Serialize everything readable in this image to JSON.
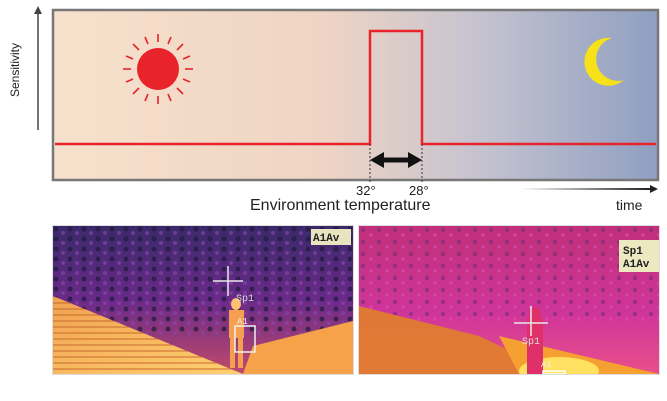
{
  "diagram": {
    "y_axis_label": "Sensitivity",
    "x_axis_label": "Environment temperature",
    "time_label": "time",
    "temp_low_label": "32°",
    "temp_high_label": "28°",
    "icons": [
      "sun-icon",
      "moon-icon",
      "double-arrow-icon"
    ],
    "colors": {
      "signal": "#e8232a",
      "day_gradient_start": "#f5dcc9",
      "night_gradient_end": "#8e9ec0",
      "sun": "#e8232a",
      "moon": "#f7e21a"
    }
  },
  "thermal_images": {
    "left": {
      "overlay_label": "A1Av",
      "spot_label": "Sp1",
      "box_label": "A1"
    },
    "right": {
      "overlay_label_1": "Sp1",
      "overlay_label_2": "A1Av",
      "spot_label": "Sp1",
      "box_label": "A1"
    }
  }
}
